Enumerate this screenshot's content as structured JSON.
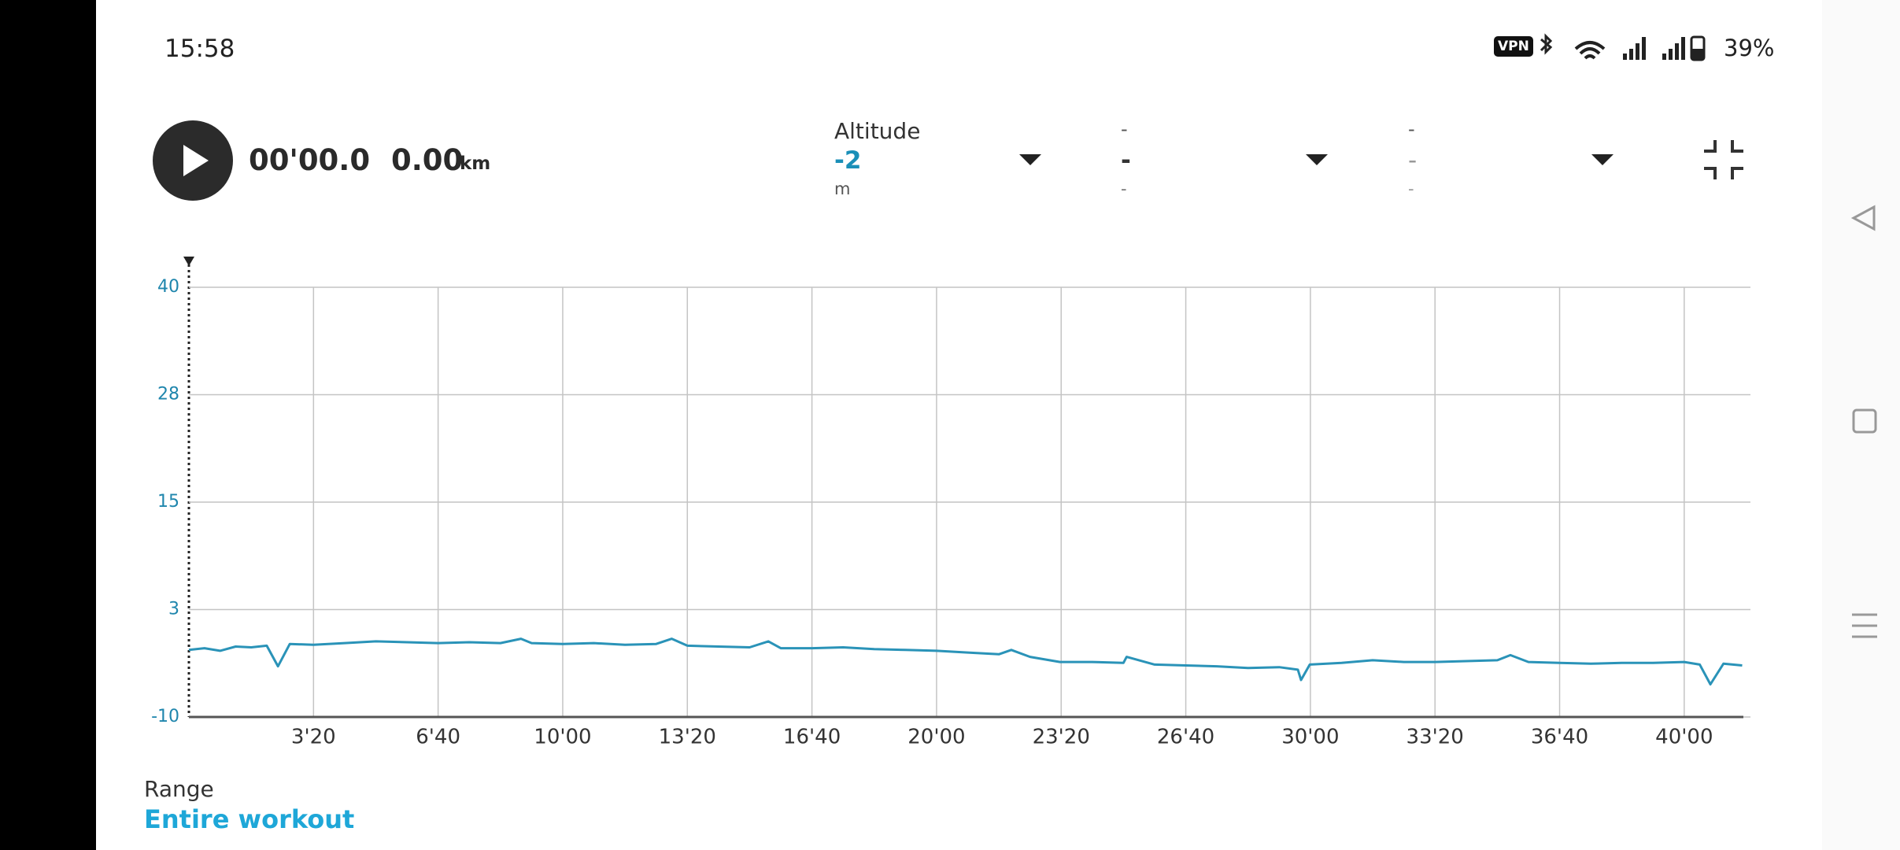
{
  "status_bar": {
    "time": "15:58",
    "vpn": "VPN",
    "battery": "39%"
  },
  "player": {
    "elapsed": "00'00.0",
    "distance": "0.00",
    "distance_unit": "km"
  },
  "selectors": [
    {
      "label": "Altitude",
      "value": "-2",
      "unit": "m"
    },
    {
      "label": "-",
      "value": "-",
      "unit": "-"
    },
    {
      "label": "-",
      "value": "-",
      "unit": "-"
    }
  ],
  "chart_data": {
    "type": "line",
    "x": [
      0,
      25,
      50,
      75,
      100,
      125,
      143,
      162,
      200,
      250,
      300,
      350,
      400,
      450,
      500,
      533,
      550,
      600,
      650,
      700,
      750,
      775,
      800,
      850,
      900,
      930,
      950,
      1000,
      1050,
      1100,
      1150,
      1200,
      1250,
      1300,
      1320,
      1350,
      1398,
      1450,
      1500,
      1505,
      1550,
      1600,
      1650,
      1700,
      1750,
      1780,
      1785,
      1799,
      1850,
      1900,
      1950,
      2000,
      2050,
      2100,
      2121,
      2150,
      2200,
      2250,
      2300,
      2350,
      2400,
      2425,
      2442,
      2463,
      2493
    ],
    "series": [
      {
        "color": "#2a93b8",
        "values": [
          -2.2,
          -2.0,
          -2.3,
          -1.8,
          -1.9,
          -1.7,
          -4.1,
          -1.5,
          -1.6,
          -1.4,
          -1.2,
          -1.3,
          -1.4,
          -1.3,
          -1.4,
          -0.9,
          -1.4,
          -1.5,
          -1.4,
          -1.6,
          -1.5,
          -0.9,
          -1.7,
          -1.8,
          -1.9,
          -1.2,
          -2.0,
          -2.0,
          -1.9,
          -2.1,
          -2.2,
          -2.3,
          -2.5,
          -2.7,
          -2.2,
          -3.0,
          -3.6,
          -3.6,
          -3.7,
          -3.0,
          -3.9,
          -4.0,
          -4.1,
          -4.3,
          -4.2,
          -4.5,
          -5.7,
          -3.9,
          -3.7,
          -3.4,
          -3.6,
          -3.6,
          -3.5,
          -3.4,
          -2.8,
          -3.6,
          -3.7,
          -3.8,
          -3.7,
          -3.7,
          -3.6,
          -3.9,
          -6.2,
          -3.8,
          -4.0
        ]
      }
    ],
    "xlim": [
      0,
      2500
    ],
    "ylim": [
      -10,
      40
    ],
    "xticks": [
      {
        "value": 200,
        "label": "3'20"
      },
      {
        "value": 400,
        "label": "6'40"
      },
      {
        "value": 600,
        "label": "10'00"
      },
      {
        "value": 800,
        "label": "13'20"
      },
      {
        "value": 1000,
        "label": "16'40"
      },
      {
        "value": 1200,
        "label": "20'00"
      },
      {
        "value": 1400,
        "label": "23'20"
      },
      {
        "value": 1600,
        "label": "26'40"
      },
      {
        "value": 1800,
        "label": "30'00"
      },
      {
        "value": 2000,
        "label": "33'20"
      },
      {
        "value": 2200,
        "label": "36'40"
      },
      {
        "value": 2400,
        "label": "40'00"
      }
    ],
    "yticks": [
      40,
      {
        "value": 27.5,
        "label": "28"
      },
      15,
      {
        "value": 2.5,
        "label": "3"
      },
      -10
    ],
    "grid": true
  },
  "range": {
    "label": "Range",
    "value": "Entire workout"
  }
}
